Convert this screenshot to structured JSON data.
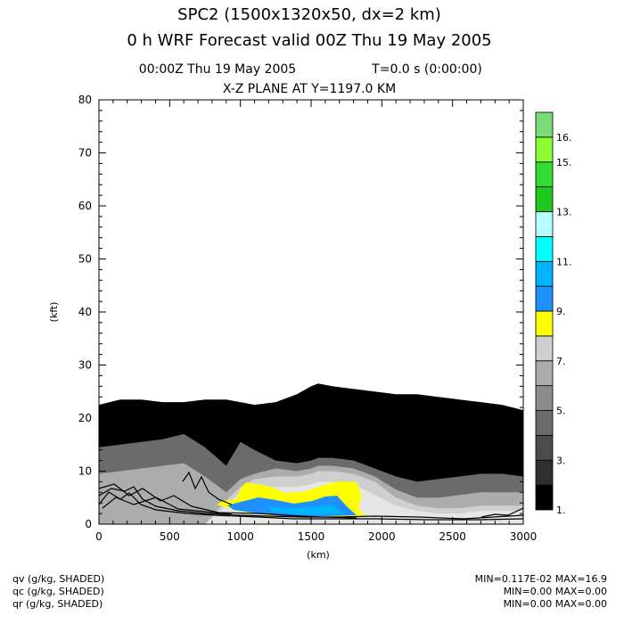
{
  "title_line1": "SPC2 (1500x1320x50, dx=2 km)",
  "title_line2": "0 h WRF Forecast valid 00Z Thu 19 May 2005",
  "time_info": "00:00Z Thu 19 May 2005",
  "integration_time": "T=0.0 s (0:00:00)",
  "plane_label": "X-Z PLANE AT Y=1197.0 KM",
  "footer": {
    "fields": [
      "qv (g/kg, SHADED)",
      "qc (g/kg, SHADED)",
      "qr (g/kg, SHADED)"
    ],
    "stats": [
      "MIN=0.117E-02 MAX=16.9",
      "MIN=0.00 MAX=0.00",
      "MIN=0.00 MAX=0.00"
    ]
  },
  "chart_data": {
    "type": "contour",
    "xlabel": "(km)",
    "ylabel": "(kft)",
    "xlim": [
      0,
      3000
    ],
    "ylim": [
      0,
      80
    ],
    "x_ticks": [
      0,
      500,
      1000,
      1500,
      2000,
      2500,
      3000
    ],
    "y_ticks": [
      0,
      10,
      20,
      30,
      40,
      50,
      60,
      70,
      80
    ],
    "colorbar": {
      "levels": [
        1,
        2,
        3,
        4,
        5,
        6,
        7,
        8,
        9,
        10,
        11,
        12,
        13,
        14,
        15,
        16
      ],
      "labels": [
        "1.",
        "3.",
        "5.",
        "7.",
        "9.",
        "11.",
        "13.",
        "15.",
        "16."
      ],
      "label_levels": [
        1,
        3,
        5,
        7,
        9,
        11,
        13,
        15,
        16
      ],
      "colors": [
        "#000000",
        "#2f2f2f",
        "#4b4b4b",
        "#6b6b6b",
        "#8c8c8c",
        "#acacac",
        "#cfcfcf",
        "#ffff00",
        "#1e90ff",
        "#00b4ff",
        "#00ffff",
        "#b4ffff",
        "#1ec81e",
        "#32dc32",
        "#8cff32",
        "#78dc78"
      ]
    },
    "qv_contour_tops": {
      "x": [
        0,
        150,
        300,
        450,
        600,
        750,
        900,
        1000,
        1100,
        1250,
        1400,
        1500,
        1550,
        1650,
        1800,
        1950,
        2100,
        2250,
        2400,
        2550,
        2700,
        2850,
        3000
      ],
      "top_1": [
        22.5,
        23.5,
        23.5,
        23.0,
        23.0,
        23.5,
        23.5,
        23.0,
        22.5,
        23.0,
        24.5,
        26.0,
        26.5,
        26.0,
        25.5,
        25.0,
        24.5,
        24.5,
        24.0,
        23.5,
        23.0,
        22.5,
        21.5
      ],
      "top_3": [
        14.5,
        15.0,
        15.5,
        16.0,
        17.0,
        14.5,
        11.0,
        15.5,
        14.0,
        12.0,
        11.5,
        12.0,
        12.5,
        12.5,
        12.0,
        10.5,
        9.0,
        8.0,
        8.5,
        9.0,
        9.5,
        9.5,
        9.0
      ],
      "top_5": [
        9.5,
        10.0,
        10.5,
        11.0,
        11.5,
        9.0,
        6.0,
        8.5,
        9.5,
        10.5,
        10.0,
        10.5,
        11.0,
        11.0,
        10.5,
        9.0,
        6.5,
        5.0,
        5.0,
        5.5,
        6.0,
        6.0,
        6.0
      ],
      "top_6": [
        0,
        0,
        0,
        0,
        0,
        0,
        4.5,
        7.0,
        8.5,
        9.0,
        9.0,
        9.5,
        10.0,
        10.0,
        9.5,
        8.0,
        5.0,
        3.5,
        3.0,
        3.0,
        3.5,
        3.5,
        3.5
      ],
      "top_7": [
        0,
        0,
        0,
        0,
        0,
        0,
        3.5,
        6.0,
        7.0,
        7.0,
        7.0,
        7.5,
        8.0,
        8.0,
        7.5,
        5.5,
        3.5,
        2.5,
        2.0,
        2.0,
        2.5,
        2.5,
        2.5
      ]
    }
  }
}
